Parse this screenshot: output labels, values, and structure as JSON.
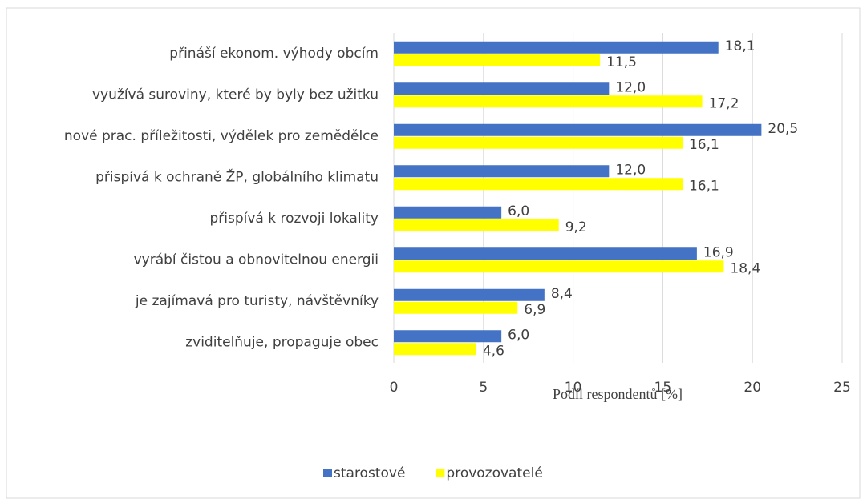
{
  "chart_data": {
    "type": "barh",
    "categories": [
      "přináší ekonom. výhody obcím",
      "využívá suroviny, které by byly bez užitku",
      "nové prac. příležitosti, výdělek pro zemědělce",
      "přispívá k ochraně ŽP, globálního klimatu",
      "přispívá k rozvoji lokality",
      "vyrábí čistou a obnovitelnou energii",
      "je zajímavá pro turisty, návštěvníky",
      "zviditelňuje, propaguje obec"
    ],
    "series": [
      {
        "name": "starostové",
        "color": "#4472c4",
        "values": [
          18.1,
          12.0,
          20.5,
          12.0,
          6.0,
          16.9,
          8.4,
          6.0
        ],
        "value_labels": [
          "18,1",
          "12,0",
          "20,5",
          "12,0",
          "6,0",
          "16,9",
          "8,4",
          "6,0"
        ]
      },
      {
        "name": "provozovatelé",
        "color": "#ffff00",
        "values": [
          11.5,
          17.2,
          16.1,
          16.1,
          9.2,
          18.4,
          6.9,
          4.6
        ],
        "value_labels": [
          "11,5",
          "17,2",
          "16,1",
          "16,1",
          "9,2",
          "18,4",
          "6,9",
          "4,6"
        ]
      }
    ],
    "xlabel": "Podíl respondentů [%]",
    "xlim": [
      0,
      25
    ],
    "xticks": [
      0,
      5,
      10,
      15,
      20,
      25
    ],
    "grid": true,
    "legend": "bottom"
  }
}
